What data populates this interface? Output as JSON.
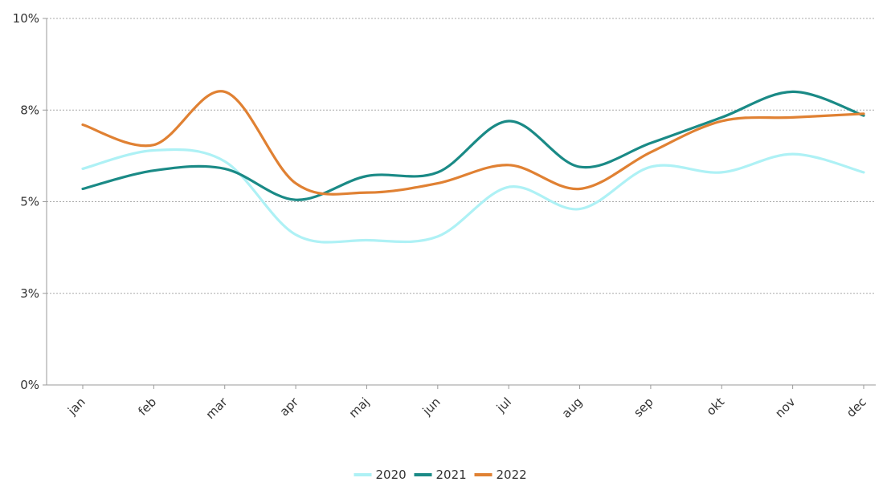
{
  "chart_data": {
    "type": "line",
    "title": "",
    "xlabel": "",
    "ylabel": "",
    "categories": [
      "jan",
      "feb",
      "mar",
      "apr",
      "maj",
      "jun",
      "jul",
      "aug",
      "sep",
      "okt",
      "nov",
      "dec"
    ],
    "y_ticks": [
      "0%",
      "3%",
      "5%",
      "8%",
      "10%"
    ],
    "ylim": [
      0,
      10
    ],
    "grid": "horizontal dotted",
    "legend_position": "bottom-center",
    "series": [
      {
        "name": "2020",
        "color": "#aef1f5",
        "values": [
          5.9,
          6.4,
          6.1,
          4.1,
          3.95,
          4.05,
          5.4,
          4.8,
          5.95,
          5.8,
          6.3,
          5.8
        ]
      },
      {
        "name": "2021",
        "color": "#1a8a86",
        "values": [
          5.35,
          5.85,
          5.9,
          5.05,
          5.7,
          5.8,
          7.2,
          5.95,
          6.6,
          7.3,
          8.0,
          7.35
        ]
      },
      {
        "name": "2022",
        "color": "#e08133",
        "values": [
          7.1,
          6.55,
          8.0,
          5.5,
          5.25,
          5.5,
          6.0,
          5.35,
          6.35,
          7.2,
          7.3,
          7.4
        ]
      }
    ]
  }
}
